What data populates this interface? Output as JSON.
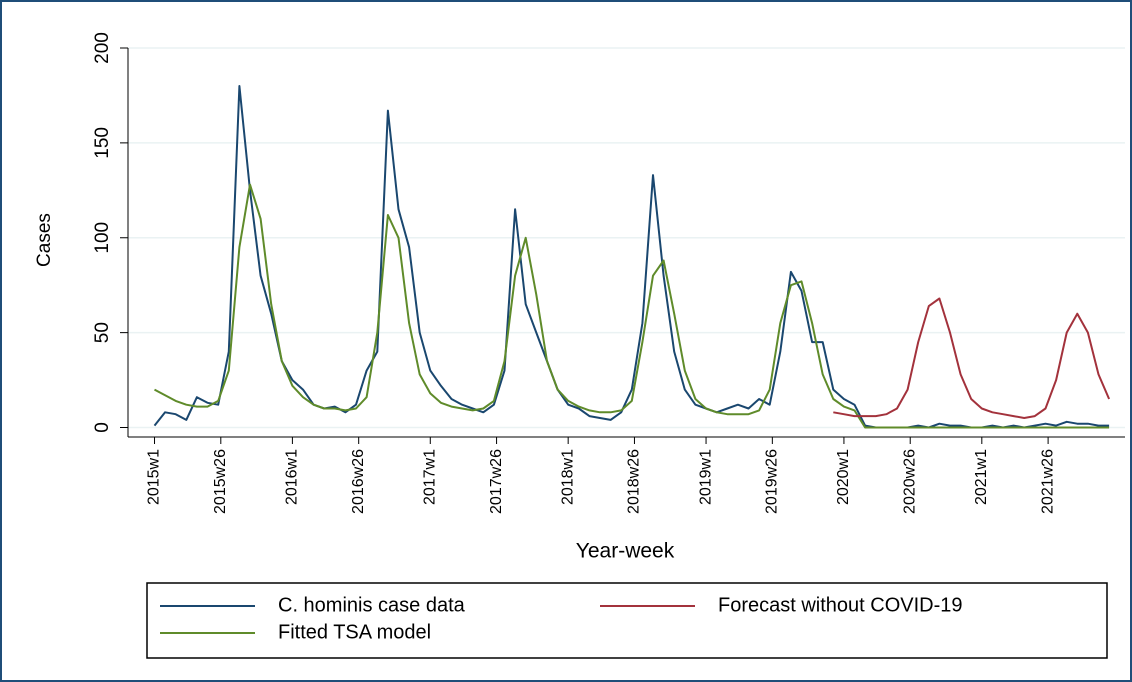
{
  "chart_data": {
    "type": "line",
    "x_label": "Year-week",
    "y_label": "Cases",
    "x": [
      0,
      4,
      8,
      12,
      16,
      20,
      24,
      28,
      32,
      36,
      40,
      44,
      48,
      52,
      56,
      60,
      64,
      68,
      72,
      76,
      80,
      84,
      88,
      92,
      96,
      100,
      104,
      108,
      112,
      116,
      120,
      124,
      128,
      132,
      136,
      140,
      144,
      148,
      152,
      156,
      160,
      164,
      168,
      172,
      176,
      180,
      184,
      188,
      192,
      196,
      200,
      204,
      208,
      212,
      216,
      220,
      224,
      228,
      232,
      236,
      240,
      244,
      248,
      252,
      256,
      260,
      264,
      268,
      272,
      276,
      280,
      284,
      288,
      292,
      296,
      300,
      304,
      308,
      312,
      316,
      320,
      324,
      328,
      332,
      336,
      340,
      344,
      348,
      352,
      356,
      360
    ],
    "series": [
      {
        "name": "C. hominis case data",
        "color": "#1a476f",
        "values": [
          1,
          8,
          7,
          4,
          16,
          13,
          12,
          40,
          180,
          125,
          80,
          60,
          35,
          25,
          20,
          12,
          10,
          11,
          8,
          12,
          30,
          40,
          167,
          115,
          95,
          50,
          30,
          22,
          15,
          12,
          10,
          8,
          12,
          30,
          115,
          65,
          50,
          35,
          20,
          12,
          10,
          6,
          5,
          4,
          8,
          20,
          55,
          133,
          80,
          40,
          20,
          12,
          10,
          8,
          10,
          12,
          10,
          15,
          12,
          40,
          82,
          72,
          45,
          45,
          20,
          15,
          12,
          1,
          0,
          0,
          0,
          0,
          1,
          0,
          2,
          1,
          1,
          0,
          0,
          1,
          0,
          1,
          0,
          1,
          2,
          1,
          3,
          2,
          2,
          1,
          1
        ]
      },
      {
        "name": "Forecast without COVID-19",
        "color": "#a3323c",
        "values": [
          null,
          null,
          null,
          null,
          null,
          null,
          null,
          null,
          null,
          null,
          null,
          null,
          null,
          null,
          null,
          null,
          null,
          null,
          null,
          null,
          null,
          null,
          null,
          null,
          null,
          null,
          null,
          null,
          null,
          null,
          null,
          null,
          null,
          null,
          null,
          null,
          null,
          null,
          null,
          null,
          null,
          null,
          null,
          null,
          null,
          null,
          null,
          null,
          null,
          null,
          null,
          null,
          null,
          null,
          null,
          null,
          null,
          null,
          null,
          null,
          null,
          null,
          null,
          null,
          8,
          7,
          6,
          6,
          6,
          7,
          10,
          20,
          45,
          64,
          68,
          50,
          28,
          15,
          10,
          8,
          7,
          6,
          5,
          6,
          10,
          25,
          50,
          60,
          50,
          28,
          15
        ]
      },
      {
        "name": "Fitted TSA model",
        "color": "#5f8b2a",
        "values": [
          20,
          17,
          14,
          12,
          11,
          11,
          14,
          30,
          95,
          128,
          110,
          65,
          35,
          22,
          16,
          12,
          10,
          10,
          9,
          10,
          16,
          50,
          112,
          100,
          55,
          28,
          18,
          13,
          11,
          10,
          9,
          10,
          14,
          35,
          80,
          100,
          70,
          35,
          20,
          14,
          11,
          9,
          8,
          8,
          9,
          14,
          45,
          80,
          88,
          60,
          30,
          15,
          10,
          8,
          7,
          7,
          7,
          9,
          20,
          55,
          75,
          77,
          55,
          28,
          15,
          11,
          9,
          0,
          0,
          0,
          0,
          0,
          0,
          0,
          0,
          0,
          0,
          0,
          0,
          0,
          0,
          0,
          0,
          0,
          0,
          0,
          0,
          0,
          0,
          0,
          0
        ]
      }
    ],
    "xlim": [
      -10,
      366
    ],
    "xticks": [
      {
        "value": 0,
        "label": "2015w1"
      },
      {
        "value": 25,
        "label": "2015w26"
      },
      {
        "value": 52,
        "label": "2016w1"
      },
      {
        "value": 77,
        "label": "2016w26"
      },
      {
        "value": 104,
        "label": "2017w1"
      },
      {
        "value": 129,
        "label": "2017w26"
      },
      {
        "value": 156,
        "label": "2018w1"
      },
      {
        "value": 181,
        "label": "2018w26"
      },
      {
        "value": 208,
        "label": "2019w1"
      },
      {
        "value": 233,
        "label": "2019w26"
      },
      {
        "value": 260,
        "label": "2020w1"
      },
      {
        "value": 285,
        "label": "2020w26"
      },
      {
        "value": 312,
        "label": "2021w1"
      },
      {
        "value": 337,
        "label": "2021w26"
      }
    ],
    "ylim": [
      -5,
      200
    ],
    "yticks": [
      0,
      50,
      100,
      150,
      200
    ],
    "grid": true,
    "legend": "bottom"
  }
}
